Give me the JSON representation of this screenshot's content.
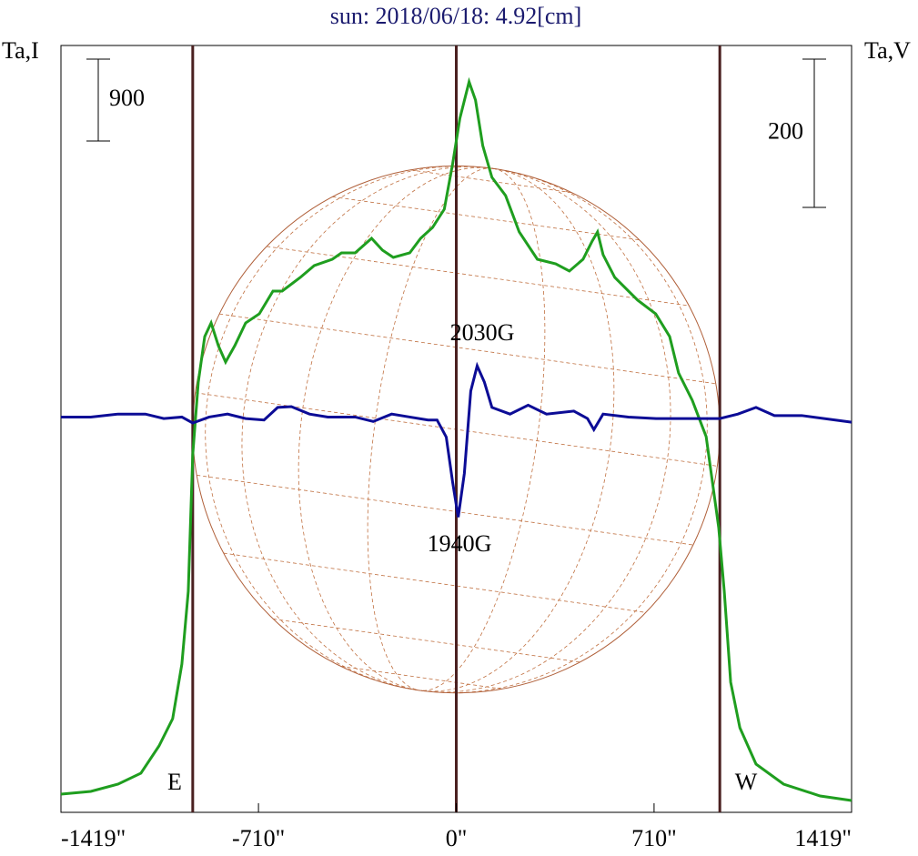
{
  "chart_data": {
    "type": "line",
    "title": "sun: 2018/06/18: 4.92[cm]",
    "ylabel": "Ta,I",
    "y2label": "Ta,V",
    "xlim": [
      -1419,
      1419
    ],
    "xticks": [
      {
        "value": -1419,
        "label": "-1419\""
      },
      {
        "value": -710,
        "label": "-710\""
      },
      {
        "value": 0,
        "label": "0\""
      },
      {
        "value": 710,
        "label": "710\""
      },
      {
        "value": 1419,
        "label": "1419\""
      }
    ],
    "ylim": [
      0,
      8430
    ],
    "y2lim": [
      -531,
      503
    ],
    "vlines": [
      -946,
      0,
      946
    ],
    "scale_bars": [
      {
        "value": 900,
        "axis": "y"
      },
      {
        "value": 200,
        "axis": "y2"
      }
    ],
    "annotations": [
      {
        "text": "2030G"
      },
      {
        "text": "1940G"
      },
      {
        "text": "E"
      },
      {
        "text": "W"
      }
    ],
    "series": [
      {
        "name": "I",
        "color": "#1f9e1f",
        "x": [
          -1419,
          -1312,
          -1214,
          -1132,
          -1067,
          -1018,
          -985,
          -962,
          -946,
          -926,
          -903,
          -880,
          -854,
          -828,
          -795,
          -756,
          -707,
          -658,
          -625,
          -560,
          -510,
          -445,
          -412,
          -363,
          -304,
          -265,
          -226,
          -167,
          -128,
          -85,
          -43,
          -13,
          13,
          46,
          69,
          95,
          128,
          177,
          226,
          291,
          357,
          406,
          455,
          488,
          507,
          527,
          569,
          651,
          716,
          766,
          798,
          847,
          897,
          942,
          962,
          985,
          1018,
          1076,
          1175,
          1306,
          1419
        ],
        "values": [
          200,
          230,
          310,
          430,
          730,
          1030,
          1630,
          2430,
          3930,
          4730,
          5230,
          5380,
          5130,
          4950,
          5130,
          5380,
          5480,
          5730,
          5730,
          5880,
          6010,
          6080,
          6150,
          6150,
          6310,
          6180,
          6100,
          6150,
          6310,
          6430,
          6630,
          7130,
          7630,
          8030,
          7830,
          7330,
          6980,
          6780,
          6380,
          6080,
          6030,
          5950,
          6080,
          6280,
          6380,
          6130,
          5880,
          5630,
          5480,
          5230,
          4830,
          4530,
          4130,
          3130,
          2430,
          1430,
          930,
          530,
          310,
          180,
          130
        ]
      },
      {
        "name": "V",
        "color": "#0c0c96",
        "axis": "y2",
        "x": [
          -1419,
          -1312,
          -1214,
          -1116,
          -1050,
          -985,
          -946,
          -887,
          -821,
          -756,
          -690,
          -641,
          -592,
          -527,
          -461,
          -363,
          -298,
          -232,
          -167,
          -101,
          -69,
          -36,
          -13,
          7,
          29,
          52,
          75,
          101,
          128,
          193,
          258,
          324,
          422,
          471,
          494,
          527,
          618,
          717,
          847,
          946,
          1011,
          1076,
          1142,
          1240,
          1419
        ],
        "values": [
          2,
          2,
          6,
          6,
          0,
          2,
          -6,
          2,
          6,
          0,
          -2,
          15,
          16,
          6,
          2,
          2,
          -4,
          6,
          2,
          -2,
          -2,
          -25,
          -86,
          -133,
          -74,
          37,
          71,
          49,
          15,
          6,
          18,
          6,
          10,
          0,
          -15,
          6,
          2,
          0,
          0,
          0,
          6,
          15,
          4,
          4,
          -5
        ]
      }
    ]
  }
}
